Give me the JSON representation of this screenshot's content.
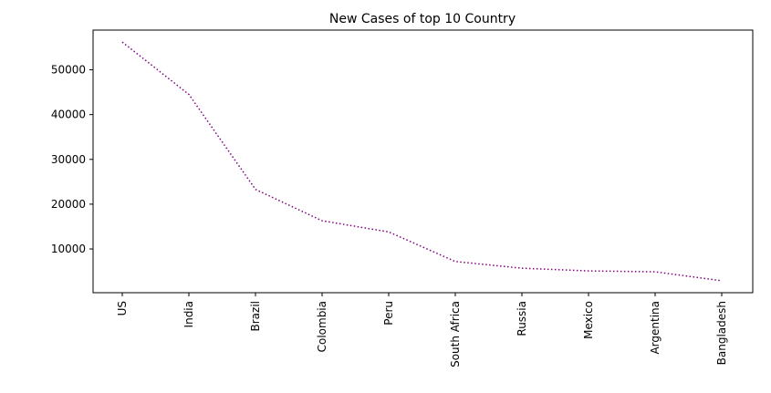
{
  "chart_data": {
    "type": "line",
    "title": "New Cases of top 10 Country",
    "xlabel": "",
    "ylabel": "",
    "categories": [
      "US",
      "India",
      "Brazil",
      "Colombia",
      "Peru",
      "South Africa",
      "Russia",
      "Mexico",
      "Argentina",
      "Bangladesh"
    ],
    "series": [
      {
        "values": [
          56200,
          44500,
          23300,
          16300,
          13800,
          7200,
          5700,
          5100,
          4900,
          2900
        ],
        "color": "#800080",
        "line_style": "dotted"
      }
    ],
    "yticks": [
      10000,
      20000,
      30000,
      40000,
      50000
    ],
    "ytick_labels": [
      "10000",
      "20000",
      "30000",
      "40000",
      "50000"
    ],
    "ylim": [
      234,
      58866
    ],
    "grid": false,
    "legend": "none"
  }
}
